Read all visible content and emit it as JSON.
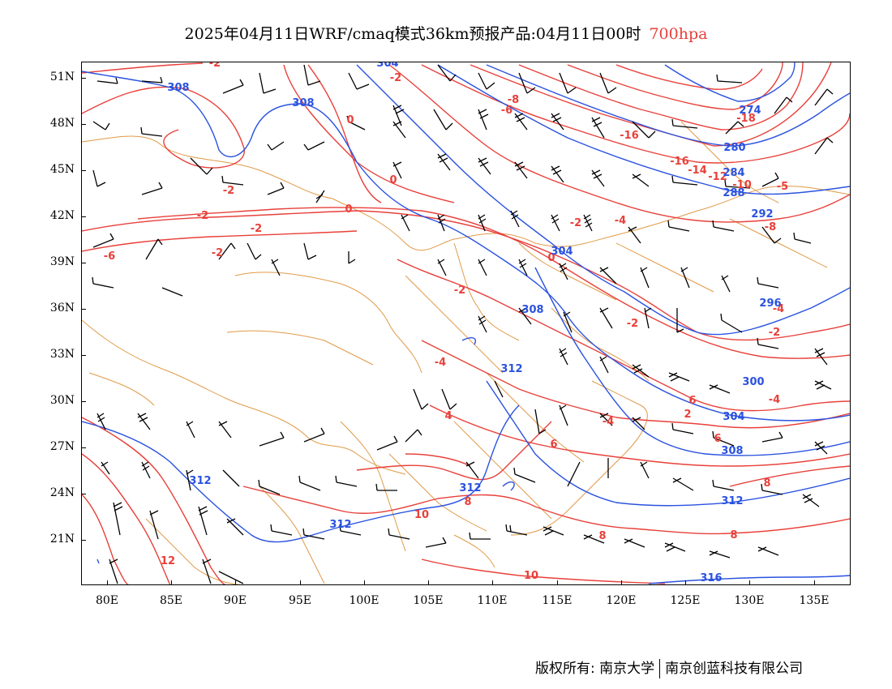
{
  "title": {
    "text": "2025年04月11日WRF/cmaq模式36km预报产品:04月11日00时",
    "level": "700hpa",
    "level_color": "#e8403a"
  },
  "colors": {
    "temperature": "#e8403a",
    "geopotential": "#2a52e0",
    "border": "#e09a48",
    "wind": "#000000"
  },
  "lat_labels": [
    "51N",
    "48N",
    "45N",
    "42N",
    "39N",
    "36N",
    "33N",
    "30N",
    "27N",
    "24N",
    "21N"
  ],
  "lon_labels": [
    "80E",
    "85E",
    "90E",
    "95E",
    "100E",
    "105E",
    "110E",
    "115E",
    "120E",
    "125E",
    "130E",
    "135E"
  ],
  "contour_labels": {
    "red": [
      "-2",
      "-2",
      "-6",
      "-8",
      "-16",
      "-18",
      "-16",
      "-14",
      "-12",
      "-10",
      "-5",
      "-8",
      "0",
      "0",
      "0",
      "-2",
      "-2",
      "-2",
      "-4",
      "-2",
      "-2",
      "0",
      "-2",
      "-4",
      "-2",
      "-4",
      "-6",
      "-4",
      "-4",
      "6",
      "-2",
      "2",
      "4",
      "6",
      "8",
      "8",
      "8",
      "6",
      "8",
      "10",
      "12",
      "10"
    ],
    "blue": [
      "308",
      "308",
      "304",
      "280",
      "284",
      "288",
      "292",
      "304",
      "308",
      "296",
      "300",
      "312",
      "304",
      "308",
      "312",
      "312",
      "312",
      "312",
      "316",
      "274"
    ]
  },
  "copyright": {
    "left": "版权所有: 南京大学",
    "right": "南京创蓝科技有限公司"
  }
}
